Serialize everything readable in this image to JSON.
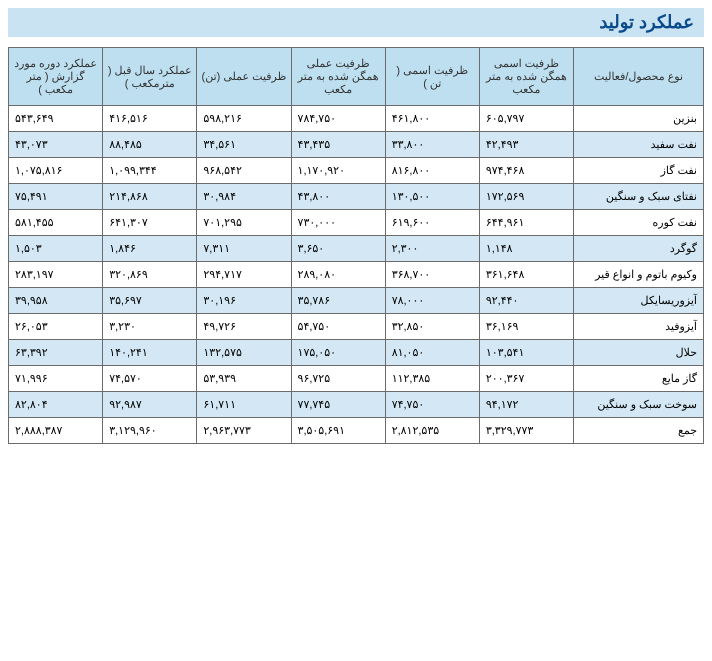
{
  "title": "عملکرد تولید",
  "headers": [
    "نوع محصول/فعالیت",
    "ظرفیت اسمی همگن شده به متر مکعب",
    "ظرفیت اسمی ( تن )",
    "ظرفیت عملی همگن شده به متر مکعب",
    "ظرفیت عملی (تن)",
    "عملکرد سال قبل ( مترمکعب )",
    "عملکرد دوره مورد گزارش ( متر مکعب )"
  ],
  "rows": [
    {
      "label": "بنزین",
      "c": [
        "۶۰۵,۷۹۷",
        "۴۶۱,۸۰۰",
        "۷۸۴,۷۵۰",
        "۵۹۸,۲۱۶",
        "۴۱۶,۵۱۶",
        "۵۴۳,۶۴۹"
      ],
      "alt": false
    },
    {
      "label": "نفت سفید",
      "c": [
        "۴۲,۴۹۳",
        "۳۳,۸۰۰",
        "۴۳,۴۳۵",
        "۳۴,۵۶۱",
        "۸۸,۴۸۵",
        "۴۳,۰۷۳"
      ],
      "alt": true
    },
    {
      "label": "نفت گاز",
      "c": [
        "۹۷۴,۴۶۸",
        "۸۱۶,۸۰۰",
        "۱,۱۷۰,۹۲۰",
        "۹۶۸,۵۴۲",
        "۱,۰۹۹,۳۴۴",
        "۱,۰۷۵,۸۱۶"
      ],
      "alt": false
    },
    {
      "label": "نفتای سبک و سنگین",
      "c": [
        "۱۷۲,۵۶۹",
        "۱۳۰,۵۰۰",
        "۴۳,۸۰۰",
        "۳۰,۹۸۴",
        "۲۱۴,۸۶۸",
        "۷۵,۴۹۱"
      ],
      "alt": true
    },
    {
      "label": "نفت کوره",
      "c": [
        "۶۴۴,۹۶۱",
        "۶۱۹,۶۰۰",
        "۷۳۰,۰۰۰",
        "۷۰۱,۲۹۵",
        "۶۴۱,۳۰۷",
        "۵۸۱,۴۵۵"
      ],
      "alt": false
    },
    {
      "label": "گوگرد",
      "c": [
        "۱,۱۴۸",
        "۲,۳۰۰",
        "۳,۶۵۰",
        "۷,۳۱۱",
        "۱,۸۴۶",
        "۱,۵۰۳"
      ],
      "alt": true
    },
    {
      "label": "وکیوم باتوم و انواع قیر",
      "c": [
        "۳۶۱,۶۴۸",
        "۳۶۸,۷۰۰",
        "۲۸۹,۰۸۰",
        "۲۹۴,۷۱۷",
        "۳۲۰,۸۶۹",
        "۲۸۳,۱۹۷"
      ],
      "alt": false
    },
    {
      "label": "آیزوریسایکل",
      "c": [
        "۹۲,۴۴۰",
        "۷۸,۰۰۰",
        "۳۵,۷۸۶",
        "۳۰,۱۹۶",
        "۳۵,۶۹۷",
        "۳۹,۹۵۸"
      ],
      "alt": true
    },
    {
      "label": "آیزوفید",
      "c": [
        "۳۶,۱۶۹",
        "۳۲,۸۵۰",
        "۵۴,۷۵۰",
        "۴۹,۷۲۶",
        "۳,۲۳۰",
        "۲۶,۰۵۳"
      ],
      "alt": false
    },
    {
      "label": "حلال",
      "c": [
        "۱۰۳,۵۴۱",
        "۸۱,۰۵۰",
        "۱۷۵,۰۵۰",
        "۱۳۲,۵۷۵",
        "۱۴۰,۲۴۱",
        "۶۳,۳۹۲"
      ],
      "alt": true
    },
    {
      "label": "گاز مایع",
      "c": [
        "۲۰۰,۳۶۷",
        "۱۱۲,۳۸۵",
        "۹۶,۷۲۵",
        "۵۳,۹۳۹",
        "۷۴,۵۷۰",
        "۷۱,۹۹۶"
      ],
      "alt": false
    },
    {
      "label": "سوخت سبک و سنگین",
      "c": [
        "۹۴,۱۷۲",
        "۷۴,۷۵۰",
        "۷۷,۷۴۵",
        "۶۱,۷۱۱",
        "۹۲,۹۸۷",
        "۸۲,۸۰۴"
      ],
      "alt": true
    },
    {
      "label": "جمع",
      "c": [
        "۳,۳۲۹,۷۷۳",
        "۲,۸۱۲,۵۳۵",
        "۳,۵۰۵,۶۹۱",
        "۲,۹۶۳,۷۷۳",
        "۳,۱۲۹,۹۶۰",
        "۲,۸۸۸,۳۸۷"
      ],
      "alt": false
    }
  ],
  "colors": {
    "title_bg": "#c9e3f2",
    "title_fg": "#0a4b8c",
    "header_bg": "#bddff0",
    "row_alt_bg": "#d3e8f4",
    "border": "#6b6b6b"
  }
}
